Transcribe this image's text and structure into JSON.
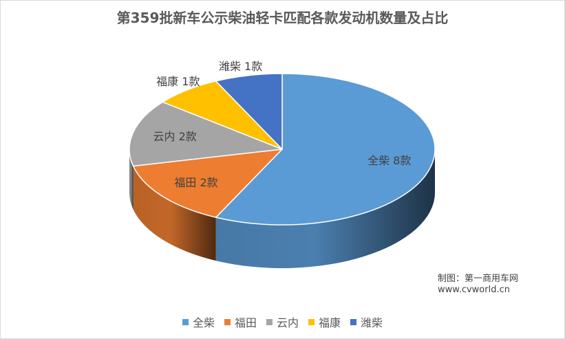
{
  "chart_data": {
    "type": "pie",
    "title": "第359批新车公示柴油轻卡匹配各款发动机数量及占比",
    "unit": "款",
    "series": [
      {
        "name": "全柴",
        "value": 8,
        "label": "全柴 8款",
        "color": "#5b9bd5"
      },
      {
        "name": "福田",
        "value": 2,
        "label": "福田 2款",
        "color": "#ed7d31"
      },
      {
        "name": "云内",
        "value": 2,
        "label": "云内 2款",
        "color": "#a5a5a5"
      },
      {
        "name": "福康",
        "value": 1,
        "label": "福康 1款",
        "color": "#ffc000"
      },
      {
        "name": "潍柴",
        "value": 1,
        "label": "潍柴 1款",
        "color": "#4472c4"
      }
    ],
    "legend_position": "bottom",
    "three_d": true
  },
  "credit": {
    "line1": "制图：第一商用车网",
    "line2": "www.cvworld.cn"
  }
}
